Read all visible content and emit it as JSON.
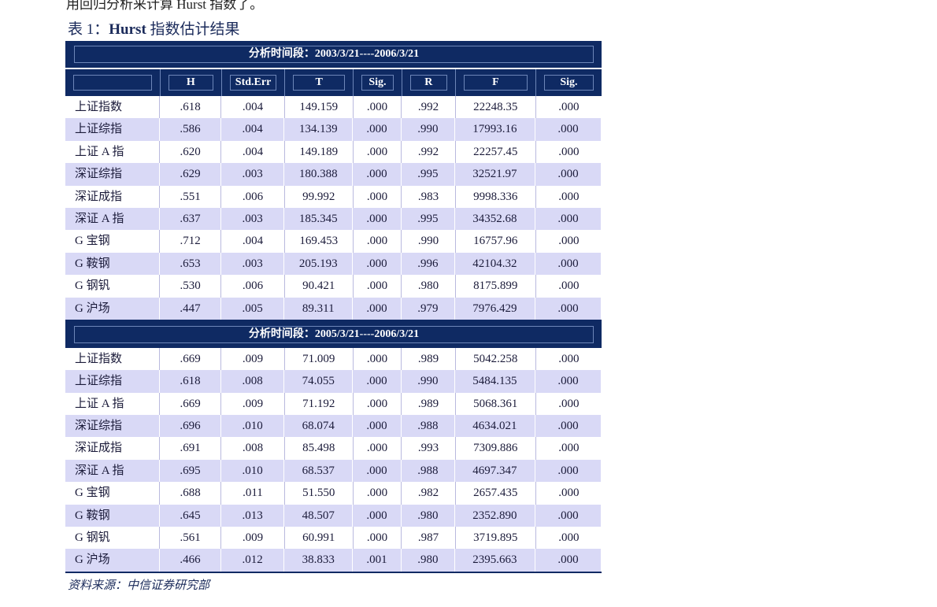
{
  "top_text": "用回归分析来计算 Hurst 指数了。",
  "caption": {
    "label": "表 1：",
    "bold": "Hurst",
    "rest": " 指数估计结果"
  },
  "columns": [
    "",
    "H",
    "Std.Err",
    "T",
    "Sig.",
    "R",
    "F",
    "Sig."
  ],
  "blocks": [
    {
      "period": "分析时间段：2003/3/21----2006/3/21",
      "rows": [
        [
          "上证指数",
          ".618",
          ".004",
          "149.159",
          ".000",
          ".992",
          "22248.35",
          ".000"
        ],
        [
          "上证综指",
          ".586",
          ".004",
          "134.139",
          ".000",
          ".990",
          "17993.16",
          ".000"
        ],
        [
          "上证 A 指",
          ".620",
          ".004",
          "149.189",
          ".000",
          ".992",
          "22257.45",
          ".000"
        ],
        [
          "深证综指",
          ".629",
          ".003",
          "180.388",
          ".000",
          ".995",
          "32521.97",
          ".000"
        ],
        [
          "深证成指",
          ".551",
          ".006",
          "99.992",
          ".000",
          ".983",
          "9998.336",
          ".000"
        ],
        [
          "深证 A 指",
          ".637",
          ".003",
          "185.345",
          ".000",
          ".995",
          "34352.68",
          ".000"
        ],
        [
          "G 宝钢",
          ".712",
          ".004",
          "169.453",
          ".000",
          ".990",
          "16757.96",
          ".000"
        ],
        [
          "G 鞍钢",
          ".653",
          ".003",
          "205.193",
          ".000",
          ".996",
          "42104.32",
          ".000"
        ],
        [
          "G 钢钒",
          ".530",
          ".006",
          "90.421",
          ".000",
          ".980",
          "8175.899",
          ".000"
        ],
        [
          "G 沪场",
          ".447",
          ".005",
          "89.311",
          ".000",
          ".979",
          "7976.429",
          ".000"
        ]
      ]
    },
    {
      "period": "分析时间段：2005/3/21----2006/3/21",
      "rows": [
        [
          "上证指数",
          ".669",
          ".009",
          "71.009",
          ".000",
          ".989",
          "5042.258",
          ".000"
        ],
        [
          "上证综指",
          ".618",
          ".008",
          "74.055",
          ".000",
          ".990",
          "5484.135",
          ".000"
        ],
        [
          "上证 A 指",
          ".669",
          ".009",
          "71.192",
          ".000",
          ".989",
          "5068.361",
          ".000"
        ],
        [
          "深证综指",
          ".696",
          ".010",
          "68.074",
          ".000",
          ".988",
          "4634.021",
          ".000"
        ],
        [
          "深证成指",
          ".691",
          ".008",
          "85.498",
          ".000",
          ".993",
          "7309.886",
          ".000"
        ],
        [
          "深证 A 指",
          ".695",
          ".010",
          "68.537",
          ".000",
          ".988",
          "4697.347",
          ".000"
        ],
        [
          "G 宝钢",
          ".688",
          ".011",
          "51.550",
          ".000",
          ".982",
          "2657.435",
          ".000"
        ],
        [
          "G 鞍钢",
          ".645",
          ".013",
          "48.507",
          ".000",
          ".980",
          "2352.890",
          ".000"
        ],
        [
          "G 钢钒",
          ".561",
          ".009",
          "60.991",
          ".000",
          ".987",
          "3719.895",
          ".000"
        ],
        [
          "G 沪场",
          ".466",
          ".012",
          "38.833",
          ".001",
          ".980",
          "2395.663",
          ".000"
        ]
      ]
    }
  ],
  "source": "资料来源：中信证券研究部",
  "colors": {
    "header_bg": "#0f2a63",
    "alt_row": "#d9d9f6"
  }
}
